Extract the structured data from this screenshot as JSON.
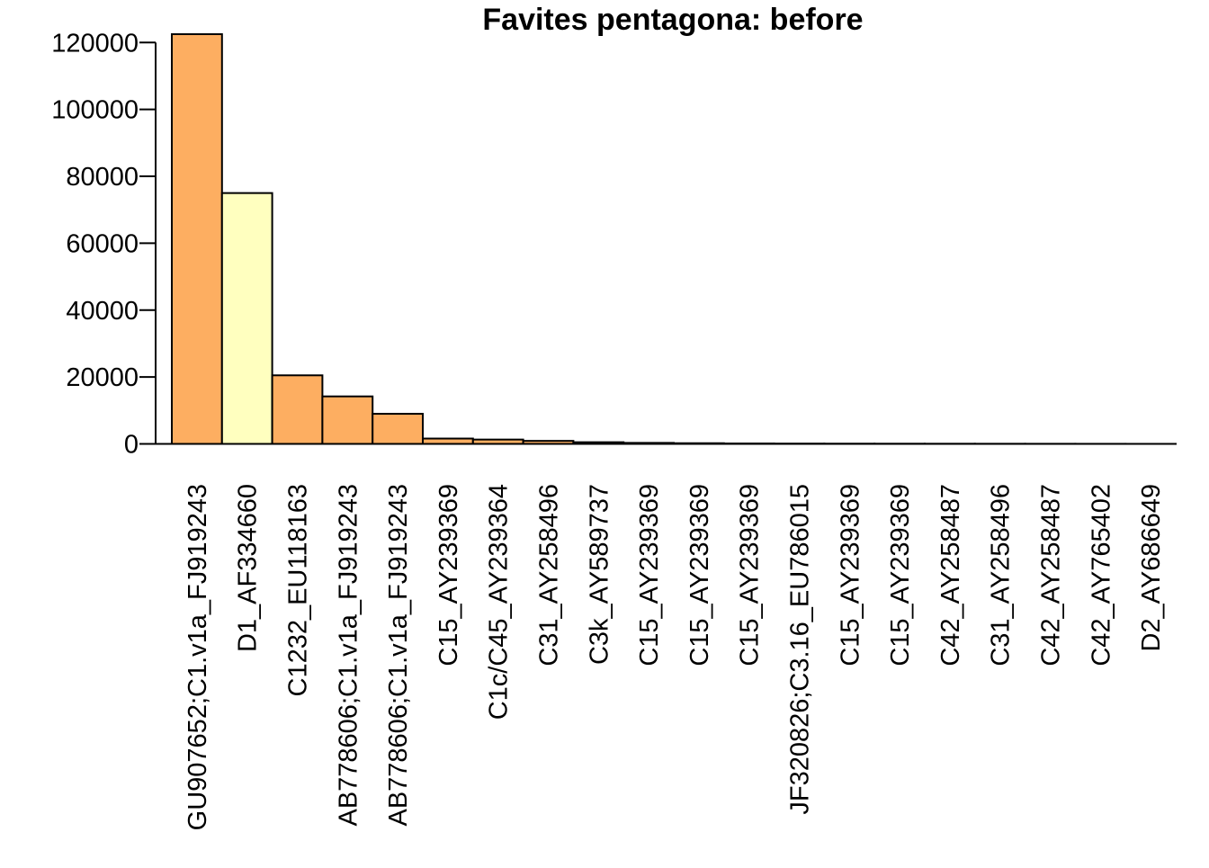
{
  "chart_data": {
    "type": "bar",
    "title": "Favites pentagona: before",
    "xlabel": "",
    "ylabel": "",
    "ylim": [
      0,
      122500
    ],
    "yticks": [
      0,
      20000,
      40000,
      60000,
      80000,
      100000,
      120000
    ],
    "ytick_labels": [
      "0",
      "20000",
      "40000",
      "60000",
      "80000",
      "100000",
      "120000"
    ],
    "grid": false,
    "legend": "none",
    "colors": {
      "clade_c": "#fdae61",
      "clade_d": "#ffffbf",
      "border": "#000000"
    },
    "categories": [
      "GU907652;C1.v1a_FJ919243",
      "D1_AF334660",
      "C1232_EU118163",
      "AB778606;C1.v1a_FJ919243",
      "AB778606;C1.v1a_FJ919243",
      "C15_AY239369",
      "C1c/C45_AY239364",
      "C31_AY258496",
      "C3k_AY589737",
      "C15_AY239369",
      "C15_AY239369",
      "C15_AY239369",
      "JF320826;C3.16_EU786015",
      "C15_AY239369",
      "C15_AY239369",
      "C42_AY258487",
      "C31_AY258496",
      "C42_AY258487",
      "C42_AY765402",
      "D2_AY686649"
    ],
    "series": [
      {
        "values": [
          122500,
          75000,
          20500,
          14200,
          9000,
          1600,
          1300,
          900,
          500,
          300,
          200,
          120,
          90,
          70,
          60,
          50,
          40,
          30,
          20,
          10
        ],
        "bar_colors": [
          "clade_c",
          "clade_d",
          "clade_c",
          "clade_c",
          "clade_c",
          "clade_c",
          "clade_c",
          "clade_c",
          "clade_c",
          "clade_c",
          "clade_c",
          "clade_c",
          "clade_c",
          "clade_c",
          "clade_c",
          "clade_c",
          "clade_c",
          "clade_c",
          "clade_c",
          "clade_d"
        ]
      }
    ]
  }
}
